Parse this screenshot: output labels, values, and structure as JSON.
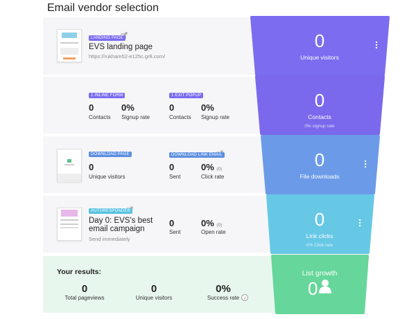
{
  "title": "Email vendor selection",
  "stages": [
    {
      "tag": "LANDING PAGE",
      "name": "EVS landing page",
      "url": "https://rukham52-e125c.gr8.com/",
      "funnel": {
        "value": "0",
        "label": "Unique visitors"
      }
    },
    {
      "blocks": [
        {
          "tag": "1 INLINE FORM",
          "metrics": [
            {
              "value": "0",
              "label": "Contacts"
            },
            {
              "value": "0%",
              "label": "Signup rate"
            }
          ]
        },
        {
          "tag": "1 EXIT POPUP",
          "metrics": [
            {
              "value": "0",
              "label": "Contacts"
            },
            {
              "value": "0%",
              "label": "Signup rate"
            }
          ]
        }
      ],
      "funnel": {
        "value": "0",
        "label": "Contacts",
        "note": "0% signup rate"
      }
    },
    {
      "blocks": [
        {
          "tag": "DOWNLOAD PAGE",
          "metrics": [
            {
              "value": "0",
              "label": "Unique visitors"
            }
          ]
        },
        {
          "tag": "DOWNLOAD LINK EMAIL",
          "metrics": [
            {
              "value": "0",
              "label": "Sent"
            },
            {
              "value": "0%",
              "extra": "(0)",
              "label": "Click rate"
            }
          ]
        }
      ],
      "funnel": {
        "value": "0",
        "label": "File downloads"
      }
    },
    {
      "tag": "AUTORESPONDER",
      "name": "Day 0: EVS's best email campaign",
      "sub": "Send immediately",
      "metrics": [
        {
          "value": "0",
          "label": "Sent"
        },
        {
          "value": "0%",
          "extra": "(0)",
          "label": "Open rate"
        }
      ],
      "funnel": {
        "value": "0",
        "label": "Link clicks",
        "note": "0% Click rate"
      }
    }
  ],
  "results": {
    "title": "Your results:",
    "metrics": [
      {
        "value": "0",
        "label": "Total pageviews"
      },
      {
        "value": "0",
        "label": "Unique visitors"
      },
      {
        "value": "0%",
        "label": "Success rate"
      }
    ],
    "funnel": {
      "label": "List growth",
      "value": "0"
    }
  }
}
